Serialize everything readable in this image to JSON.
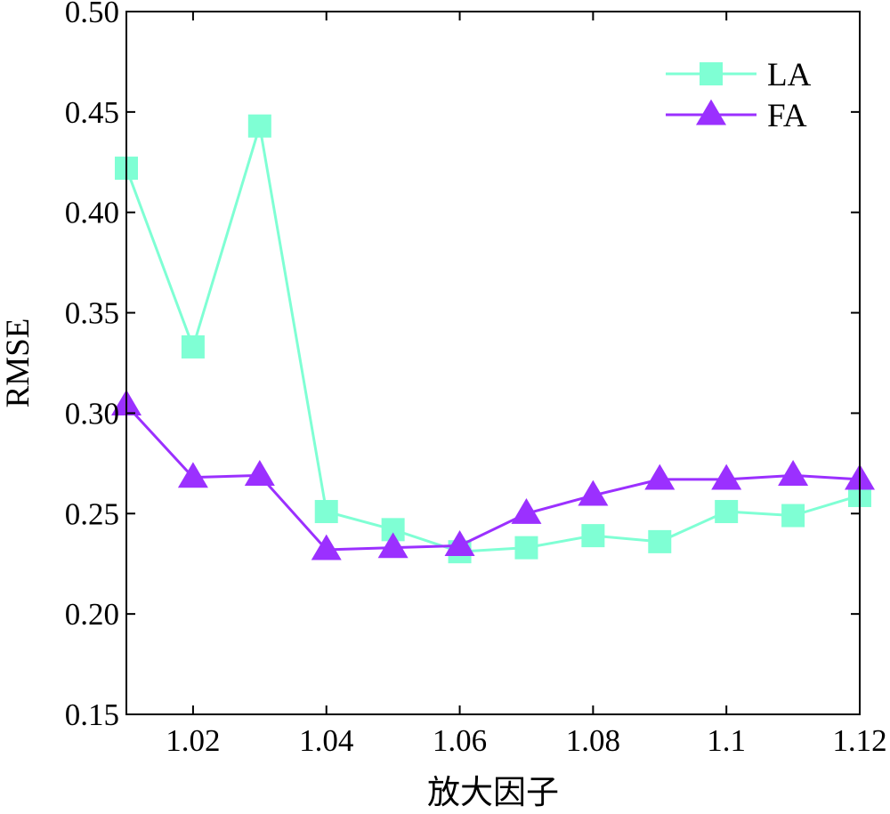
{
  "chart_data": {
    "type": "line",
    "title": "",
    "xlabel": "放大因子",
    "ylabel": "RMSE",
    "xlim": [
      1.01,
      1.12
    ],
    "ylim": [
      0.15,
      0.5
    ],
    "x": [
      1.01,
      1.02,
      1.03,
      1.04,
      1.05,
      1.06,
      1.07,
      1.08,
      1.09,
      1.1,
      1.11,
      1.12
    ],
    "x_ticks": [
      1.02,
      1.04,
      1.06,
      1.08,
      1.1,
      1.12
    ],
    "x_tick_labels": [
      "1.02",
      "1.04",
      "1.06",
      "1.08",
      "1.1",
      "1.12"
    ],
    "y_ticks": [
      0.15,
      0.2,
      0.25,
      0.3,
      0.35,
      0.4,
      0.45,
      0.5
    ],
    "y_tick_labels": [
      "0.15",
      "0.20",
      "0.25",
      "0.30",
      "0.35",
      "0.40",
      "0.45",
      "0.50"
    ],
    "grid": false,
    "legend_position": "top-right",
    "series": [
      {
        "name": "LA",
        "color": "#7FFFD4",
        "marker": "square",
        "values": [
          0.422,
          0.333,
          0.443,
          0.251,
          0.242,
          0.231,
          0.233,
          0.239,
          0.236,
          0.251,
          0.249,
          0.259
        ]
      },
      {
        "name": "FA",
        "color": "#9B30FF",
        "marker": "triangle",
        "values": [
          0.304,
          0.268,
          0.269,
          0.232,
          0.233,
          0.234,
          0.25,
          0.259,
          0.267,
          0.267,
          0.269,
          0.267
        ]
      }
    ]
  }
}
